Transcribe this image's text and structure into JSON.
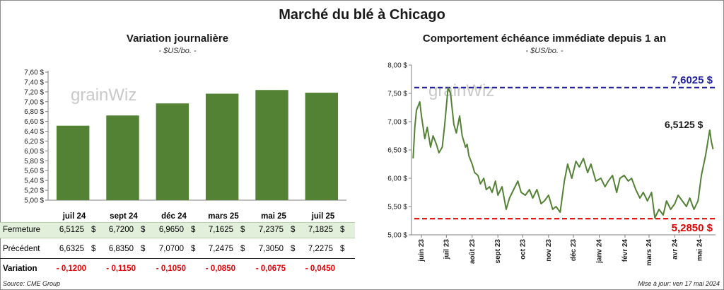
{
  "title": "Marché du blé à Chicago",
  "colors": {
    "bar": "#548235",
    "line": "#548235",
    "high": "#1f1fa0",
    "low": "#e00000",
    "negative": "#e00000",
    "band": "#e2efda"
  },
  "left": {
    "title": "Variation journalière",
    "subtitle": "- $US/bo. -",
    "watermark": "grainWiz",
    "table": {
      "months": [
        "juil 24",
        "sept 24",
        "déc 24",
        "mars 25",
        "mai 25",
        "juil 25"
      ],
      "fermeture_label": "Fermeture",
      "fermeture": [
        "6,5125",
        "6,7200",
        "6,9650",
        "7,1625",
        "7,2375",
        "7,1825"
      ],
      "precedent_label": "Précédent",
      "precedent": [
        "6,6325",
        "6,8350",
        "7,0700",
        "7,2475",
        "7,3050",
        "7,2275"
      ],
      "variation_label": "Variation",
      "variation": [
        "- 0,1200",
        "- 0,1150",
        "- 0,1050",
        "- 0,0850",
        "- 0,0675",
        "- 0,0450"
      ],
      "currency": "$"
    }
  },
  "right": {
    "title": "Comportement  échéance immédiate depuis 1 an",
    "subtitle": "- $US/bo. -",
    "watermark": "grainWiz",
    "high_label": "7,6025 $",
    "low_label": "5,2850 $",
    "last_label": "6,5125 $"
  },
  "chart_data": [
    {
      "type": "bar",
      "title": "Variation journalière",
      "subtitle": "- $US/bo. -",
      "categories": [
        "juil 24",
        "sept 24",
        "déc 24",
        "mars 25",
        "mai 25",
        "juil 25"
      ],
      "values": [
        6.5125,
        6.72,
        6.965,
        7.1625,
        7.2375,
        7.1825
      ],
      "ylim": [
        5.0,
        7.6
      ],
      "yticks": [
        "5,00 $",
        "5,20 $",
        "5,40 $",
        "5,60 $",
        "5,80 $",
        "6,00 $",
        "6,20 $",
        "6,40 $",
        "6,60 $",
        "6,80 $",
        "7,00 $",
        "7,20 $",
        "7,40 $",
        "7,60 $"
      ],
      "grid": false
    },
    {
      "type": "line",
      "title": "Comportement  échéance immédiate depuis 1 an",
      "subtitle": "- $US/bo. -",
      "ylim": [
        5.0,
        8.0
      ],
      "yticks": [
        "5,00 $",
        "5,50 $",
        "6,00 $",
        "6,50 $",
        "7,00 $",
        "7,50 $",
        "8,00 $"
      ],
      "xticks": [
        "juin 23",
        "juil 23",
        "août 23",
        "sept 23",
        "oct 23",
        "nov 23",
        "déc 23",
        "janv 24",
        "févr 24",
        "mars 24",
        "avr 24",
        "mai 24"
      ],
      "high": 7.6025,
      "low": 5.285,
      "last": 6.5125,
      "grid": false,
      "series": [
        {
          "x": [
            "2023-05-22",
            "2023-05-24",
            "2023-05-26",
            "2023-05-30",
            "2023-06-01",
            "2023-06-05",
            "2023-06-08",
            "2023-06-12",
            "2023-06-15",
            "2023-06-19",
            "2023-06-22",
            "2023-06-26",
            "2023-06-29",
            "2023-07-03",
            "2023-07-06",
            "2023-07-10",
            "2023-07-13",
            "2023-07-17",
            "2023-07-20",
            "2023-07-24",
            "2023-07-26",
            "2023-07-28",
            "2023-08-01",
            "2023-08-04",
            "2023-08-08",
            "2023-08-11",
            "2023-08-15",
            "2023-08-18",
            "2023-08-22",
            "2023-08-25",
            "2023-08-29",
            "2023-09-01",
            "2023-09-06",
            "2023-09-11",
            "2023-09-15",
            "2023-09-20",
            "2023-09-25",
            "2023-09-29",
            "2023-10-04",
            "2023-10-09",
            "2023-10-13",
            "2023-10-18",
            "2023-10-23",
            "2023-10-27",
            "2023-11-01",
            "2023-11-06",
            "2023-11-10",
            "2023-11-15",
            "2023-11-20",
            "2023-11-24",
            "2023-11-29",
            "2023-12-04",
            "2023-12-08",
            "2023-12-13",
            "2023-12-18",
            "2023-12-22",
            "2023-12-28",
            "2024-01-03",
            "2024-01-08",
            "2024-01-12",
            "2024-01-17",
            "2024-01-22",
            "2024-01-26",
            "2024-01-31",
            "2024-02-05",
            "2024-02-09",
            "2024-02-14",
            "2024-02-19",
            "2024-02-23",
            "2024-02-28",
            "2024-03-04",
            "2024-03-08",
            "2024-03-13",
            "2024-03-18",
            "2024-03-22",
            "2024-03-27",
            "2024-04-01",
            "2024-04-05",
            "2024-04-10",
            "2024-04-15",
            "2024-04-19",
            "2024-04-24",
            "2024-04-29",
            "2024-05-03",
            "2024-05-08",
            "2024-05-13",
            "2024-05-15",
            "2024-05-17"
          ],
          "values": [
            6.35,
            6.9,
            7.2,
            7.35,
            7.1,
            6.7,
            6.9,
            6.55,
            6.75,
            6.6,
            6.45,
            6.55,
            6.95,
            7.6,
            7.5,
            6.95,
            6.8,
            7.1,
            6.75,
            6.55,
            6.6,
            6.4,
            6.25,
            6.1,
            6.05,
            5.9,
            6.0,
            5.8,
            5.85,
            5.75,
            5.95,
            5.7,
            5.85,
            5.45,
            5.65,
            5.8,
            5.95,
            5.75,
            5.7,
            5.8,
            5.65,
            5.8,
            5.55,
            5.6,
            5.7,
            5.45,
            5.5,
            5.4,
            5.95,
            6.25,
            6.0,
            6.3,
            6.2,
            6.35,
            6.1,
            6.25,
            5.95,
            6.0,
            5.85,
            5.95,
            6.05,
            5.75,
            6.0,
            6.05,
            5.95,
            6.0,
            5.8,
            5.65,
            5.75,
            5.6,
            5.75,
            5.3,
            5.45,
            5.35,
            5.6,
            5.45,
            5.55,
            5.7,
            5.6,
            5.5,
            5.65,
            5.45,
            5.6,
            6.05,
            6.4,
            6.85,
            6.65,
            6.5125
          ]
        }
      ]
    }
  ],
  "footer": {
    "source": "Source: CME Group",
    "update": "Mise à jour: ven 17 mai 2024"
  }
}
